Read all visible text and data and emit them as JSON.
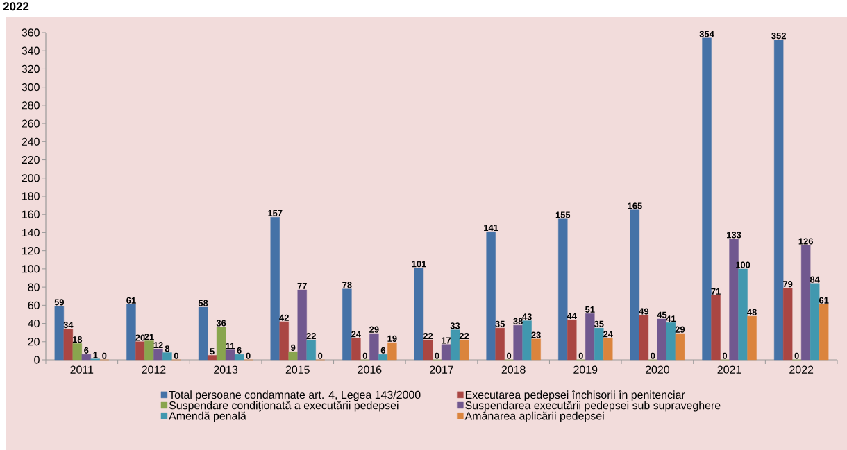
{
  "chart_data": {
    "type": "bar",
    "title": "2022",
    "categories": [
      "2011",
      "2012",
      "2013",
      "2015",
      "2016",
      "2017",
      "2018",
      "2019",
      "2020",
      "2021",
      "2022"
    ],
    "series": [
      {
        "name": "Total persoane condamnate art. 4, Legea 143/2000",
        "color": "#4572a7",
        "values": [
          59,
          61,
          58,
          157,
          78,
          101,
          141,
          155,
          165,
          354,
          352
        ]
      },
      {
        "name": "Executarea pedepsei închisorii în penitenciar",
        "color": "#aa4643",
        "values": [
          34,
          20,
          5,
          42,
          24,
          22,
          35,
          44,
          49,
          71,
          79
        ]
      },
      {
        "name": "Suspendare condiţionată a executării pedepsei",
        "color": "#89a54e",
        "values": [
          18,
          21,
          36,
          9,
          0,
          0,
          0,
          0,
          0,
          0,
          0
        ]
      },
      {
        "name": "Suspendarea executării pedepsei sub supraveghere",
        "color": "#71588f",
        "values": [
          6,
          12,
          11,
          77,
          29,
          17,
          38,
          51,
          45,
          133,
          126
        ]
      },
      {
        "name": "Amendă penală",
        "color": "#4198af",
        "values": [
          1,
          8,
          6,
          22,
          6,
          33,
          43,
          35,
          41,
          100,
          84
        ]
      },
      {
        "name": "Amânarea aplicării pedepsei",
        "color": "#db843d",
        "values": [
          0,
          0,
          0,
          0,
          19,
          22,
          23,
          24,
          29,
          48,
          61
        ]
      }
    ],
    "ylim": [
      0,
      360
    ],
    "yticks": [
      0,
      20,
      40,
      60,
      80,
      100,
      120,
      140,
      160,
      180,
      200,
      220,
      240,
      260,
      280,
      300,
      320,
      340,
      360
    ],
    "data_labels": true,
    "legend": "bottom",
    "grid": false
  }
}
